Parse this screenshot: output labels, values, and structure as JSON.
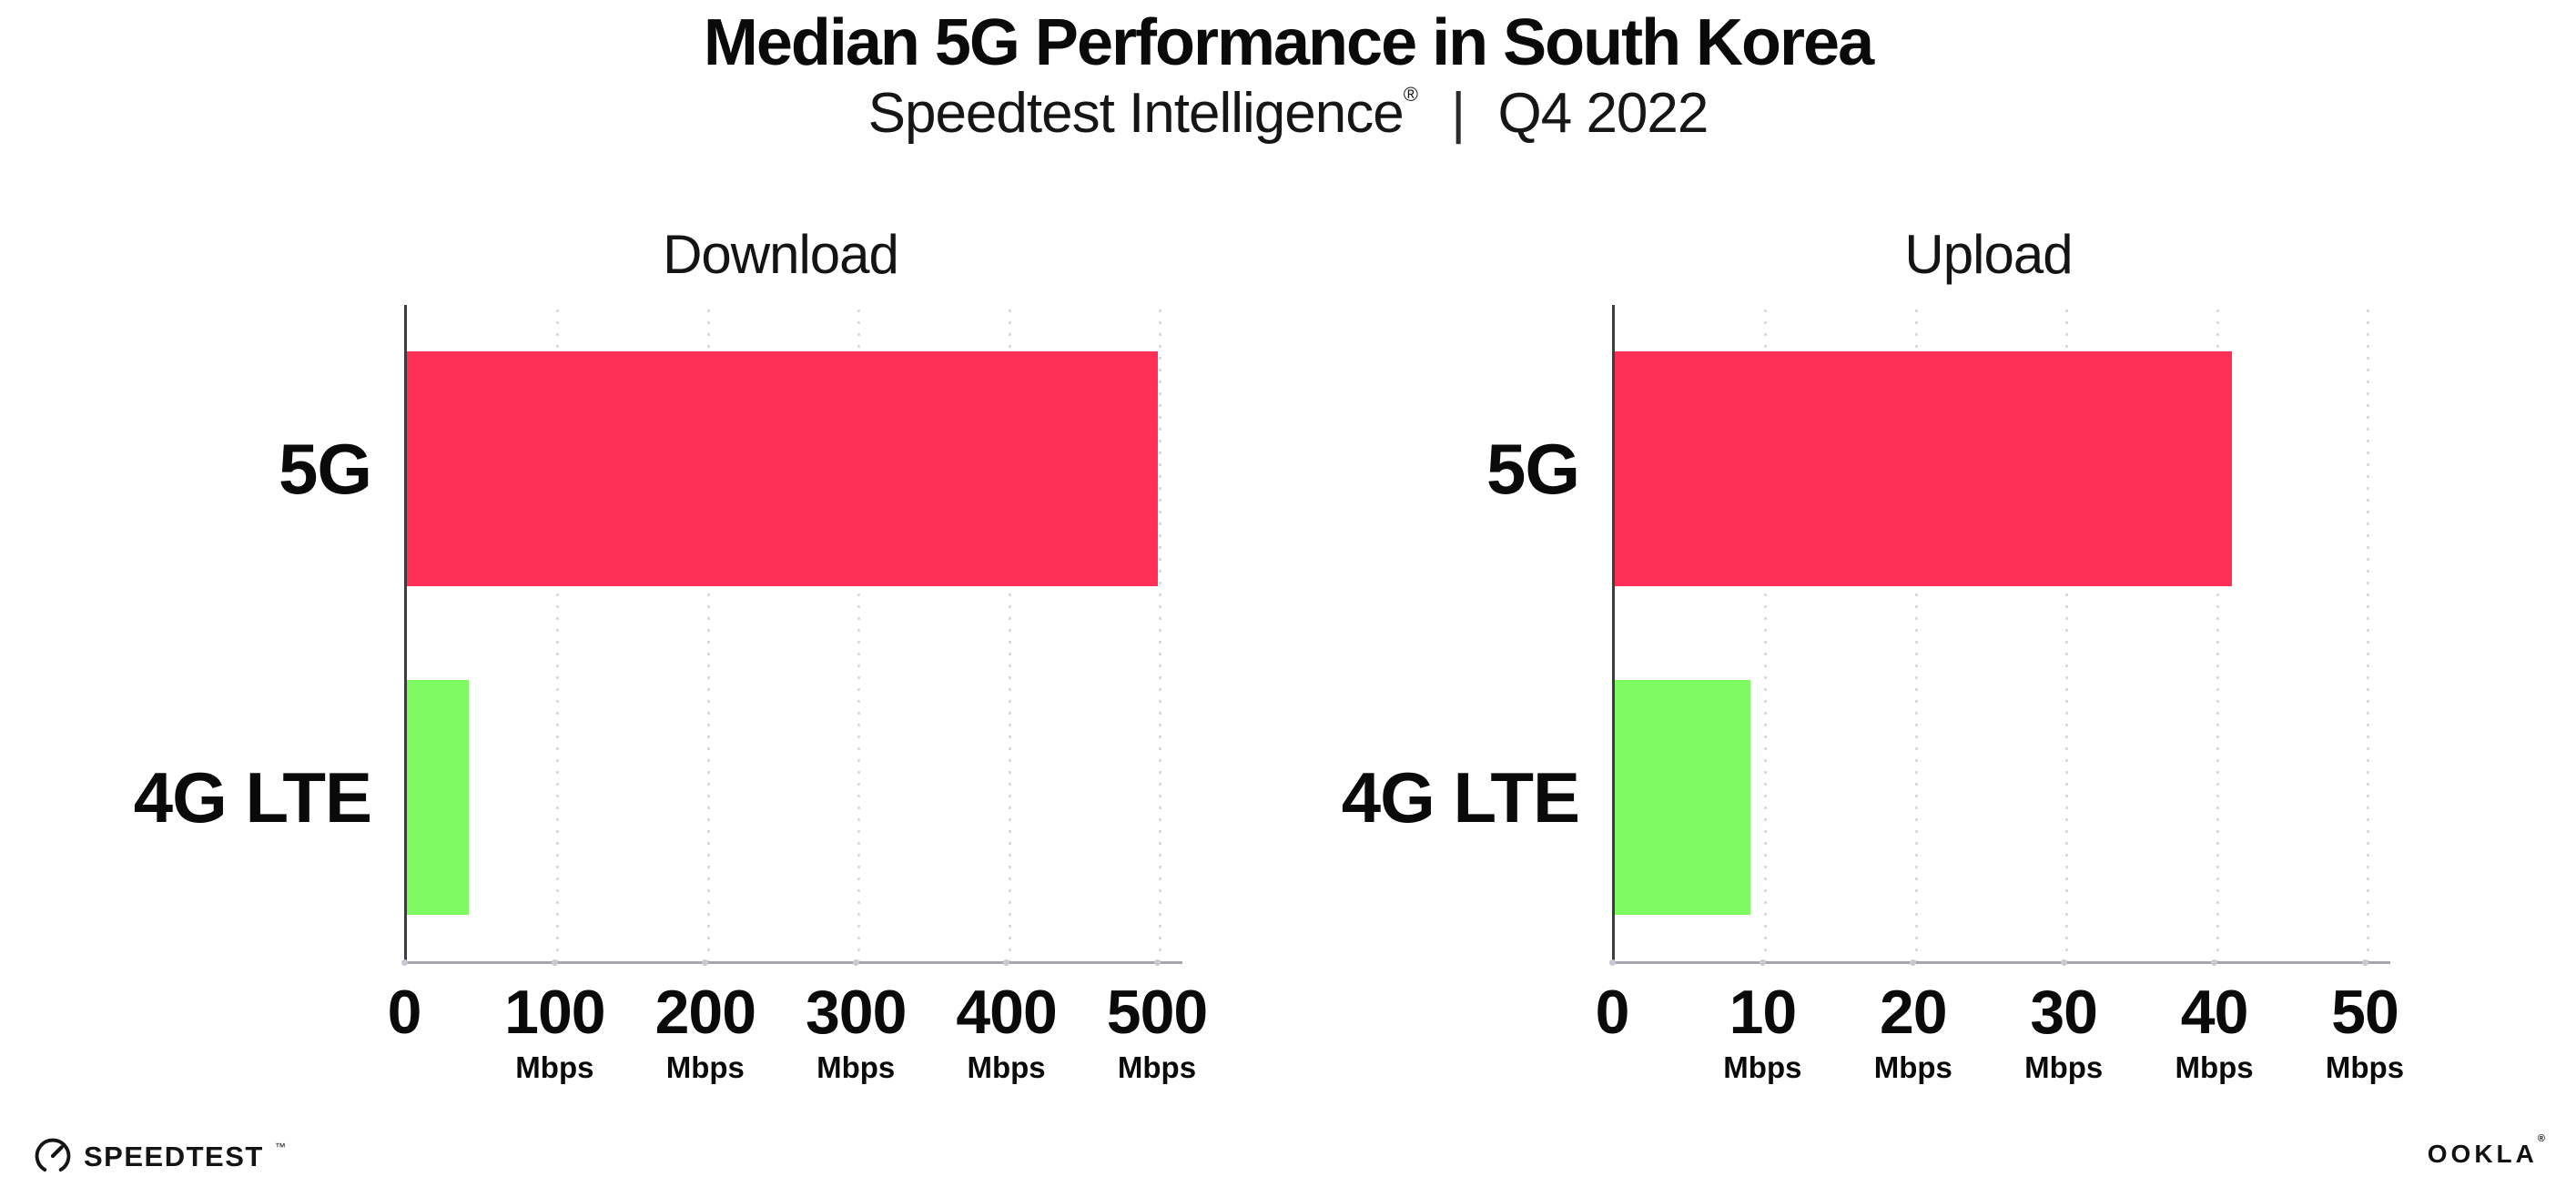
{
  "header": {
    "title": "Median 5G Performance in South Korea",
    "subtitle_brand": "Speedtest Intelligence",
    "subtitle_reg": "®",
    "subtitle_separator": "|",
    "subtitle_period": "Q4 2022"
  },
  "chart_data": [
    {
      "type": "bar",
      "orientation": "horizontal",
      "title": "Download",
      "categories": [
        "5G",
        "4G LTE"
      ],
      "values": [
        499,
        41
      ],
      "value_unit": "Mbps",
      "xlim": [
        0,
        500
      ],
      "xticks": [
        0,
        100,
        200,
        300,
        400,
        500
      ],
      "xtick_unit": "Mbps",
      "bar_colors": [
        "#ff2f56",
        "#7efb63"
      ],
      "grid": "dotted-vertical",
      "legend": "none"
    },
    {
      "type": "bar",
      "orientation": "horizontal",
      "title": "Upload",
      "categories": [
        "5G",
        "4G LTE"
      ],
      "values": [
        41,
        9
      ],
      "value_unit": "Mbps",
      "xlim": [
        0,
        50
      ],
      "xticks": [
        0,
        10,
        20,
        30,
        40,
        50
      ],
      "xtick_unit": "Mbps",
      "bar_colors": [
        "#ff2f56",
        "#7efb63"
      ],
      "grid": "dotted-vertical",
      "legend": "none"
    }
  ],
  "footer": {
    "speedtest_label": "SPEEDTEST",
    "speedtest_tm": "™",
    "ookla_label": "OOKLA",
    "ookla_reg": "®"
  },
  "colors": {
    "bar_5g": "#ff2f56",
    "bar_4g": "#7efb63",
    "axis_left": "#3c3c41",
    "axis_bottom": "#a6a6ae",
    "grid_dot": "#d8d8e2",
    "axis_tick_dot": "#c9c9d4",
    "text": "#111111",
    "background": "#ffffff"
  }
}
